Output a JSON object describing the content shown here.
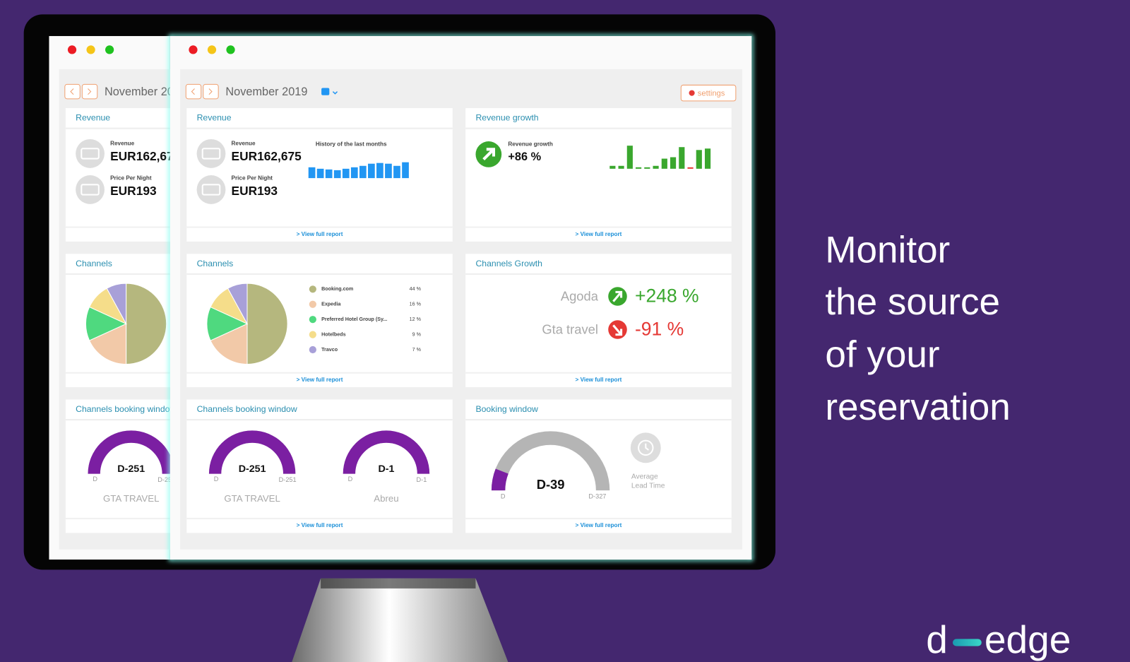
{
  "headline": [
    "Monitor",
    "the source",
    "of your",
    "reservation"
  ],
  "logo": {
    "left": "d",
    "right": "edge"
  },
  "dashboard": {
    "month": "November 2019",
    "settings": "settings",
    "view_report": "> View full report",
    "revenue": {
      "title": "Revenue",
      "revenue_label": "Revenue",
      "revenue_value": "EUR162,675",
      "price_label": "Price Per Night",
      "price_value": "EUR193",
      "history_label": "History of the last months",
      "history": {
        "type": "bar",
        "values": [
          15,
          13,
          12,
          11,
          13,
          15,
          17,
          20,
          21,
          20,
          17,
          22
        ],
        "ylim": [
          0,
          25
        ],
        "color": "#2196f3"
      }
    },
    "revenue_growth": {
      "title": "Revenue growth",
      "label": "Revenue growth",
      "value": "+86 %",
      "bars": {
        "type": "bar",
        "values": [
          4,
          4,
          32,
          2,
          2,
          4,
          14,
          16,
          30,
          2,
          26,
          28
        ],
        "ylim": [
          0,
          34
        ],
        "colors": [
          "#3aa72e",
          "#3aa72e",
          "#3aa72e",
          "#3aa72e",
          "#3aa72e",
          "#3aa72e",
          "#3aa72e",
          "#3aa72e",
          "#3aa72e",
          "#e53935",
          "#3aa72e",
          "#3aa72e"
        ]
      }
    },
    "channels": {
      "title": "Channels",
      "type": "pie",
      "categories": [
        "Booking.com",
        "Expedia",
        "Preferred Hotel Group (Sy...",
        "Hotelbeds",
        "Travco"
      ],
      "values": [
        44,
        16,
        12,
        9,
        7
      ],
      "value_labels": [
        "44 %",
        "16 %",
        "12 %",
        "9 %",
        "7 %"
      ],
      "colors": [
        "#b5b77e",
        "#f2c9a8",
        "#4fd97f",
        "#f5dd8a",
        "#a8a0d8"
      ]
    },
    "channels_growth": {
      "title": "Channels Growth",
      "rows": [
        {
          "name": "Agoda",
          "value": "+248 %",
          "color": "#3aa72e"
        },
        {
          "name": "Gta travel",
          "value": "-91 %",
          "color": "#e53935"
        }
      ]
    },
    "channels_booking_window": {
      "title": "Channels booking window",
      "gauges": [
        {
          "label": "D-251",
          "value": 251,
          "max": 251,
          "min_label": "D",
          "max_label": "D-251",
          "name": "GTA TRAVEL"
        },
        {
          "label": "D-1",
          "value": 1,
          "max": 1,
          "min_label": "D",
          "max_label": "D-1",
          "name": "Abreu"
        }
      ]
    },
    "booking_window": {
      "title": "Booking window",
      "label": "D-39",
      "value": 39,
      "max": 327,
      "min_label": "D",
      "max_label": "D-327",
      "lead_time": [
        "Average",
        "Lead Time"
      ]
    }
  }
}
